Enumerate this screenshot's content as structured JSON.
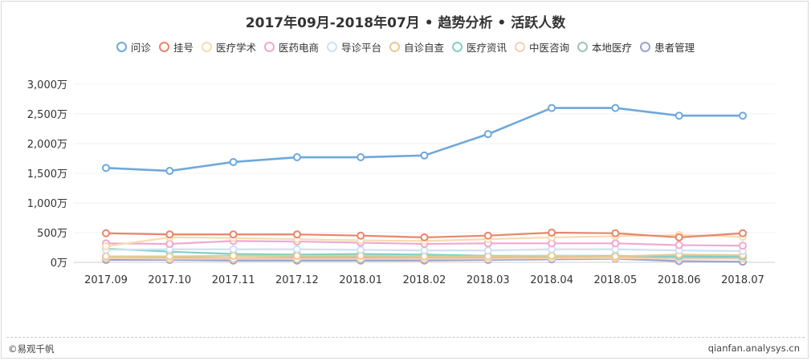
{
  "chart_data": {
    "type": "line",
    "title": "2017年09月-2018年07月 • 趋势分析 • 活跃人数",
    "xlabel": "",
    "ylabel": "",
    "ylim": [
      0,
      3000
    ],
    "yticks": [
      "0万",
      "500万",
      "1,000万",
      "1,500万",
      "2,000万",
      "2,500万",
      "3,000万"
    ],
    "ytick_values": [
      0,
      500,
      1000,
      1500,
      2000,
      2500,
      3000
    ],
    "grid": true,
    "legend_position": "top-center",
    "categories": [
      "2017.09",
      "2017.10",
      "2017.11",
      "2017.12",
      "2018.01",
      "2018.02",
      "2018.03",
      "2018.04",
      "2018.05",
      "2018.06",
      "2018.07"
    ],
    "series": [
      {
        "name": "问诊",
        "color": "#6fa8dc",
        "values": [
          1590,
          1540,
          1690,
          1770,
          1770,
          1800,
          2160,
          2600,
          2600,
          2470,
          2470
        ]
      },
      {
        "name": "挂号",
        "color": "#e8856a",
        "values": [
          490,
          470,
          470,
          470,
          450,
          420,
          450,
          500,
          490,
          420,
          490
        ]
      },
      {
        "name": "医疗学术",
        "color": "#f5dcb0",
        "values": [
          270,
          420,
          410,
          390,
          370,
          360,
          390,
          420,
          440,
          460,
          430
        ]
      },
      {
        "name": "医药电商",
        "color": "#f0a8cf",
        "values": [
          320,
          310,
          360,
          350,
          330,
          310,
          320,
          320,
          320,
          290,
          280
        ]
      },
      {
        "name": "导诊平台",
        "color": "#cfe0f2",
        "values": [
          210,
          220,
          220,
          220,
          210,
          200,
          200,
          220,
          220,
          200,
          190
        ]
      },
      {
        "name": "自诊自查",
        "color": "#e9c98f",
        "values": [
          100,
          100,
          110,
          110,
          110,
          100,
          100,
          110,
          100,
          130,
          120
        ]
      },
      {
        "name": "医疗资讯",
        "color": "#7ecfc8",
        "values": [
          230,
          180,
          140,
          130,
          140,
          130,
          110,
          110,
          110,
          100,
          100
        ]
      },
      {
        "name": "中医咨询",
        "color": "#f6cfb9",
        "values": [
          70,
          60,
          60,
          60,
          60,
          60,
          60,
          70,
          70,
          60,
          60
        ]
      },
      {
        "name": "本地医疗",
        "color": "#9fc3b8",
        "values": [
          90,
          80,
          70,
          80,
          80,
          80,
          80,
          80,
          80,
          70,
          80
        ]
      },
      {
        "name": "患者管理",
        "color": "#9aa4c8",
        "values": [
          40,
          40,
          30,
          30,
          30,
          30,
          40,
          50,
          60,
          20,
          10
        ]
      }
    ]
  },
  "footer": {
    "brand": "©易观千帆",
    "url": "qianfan.analysys.cn"
  }
}
